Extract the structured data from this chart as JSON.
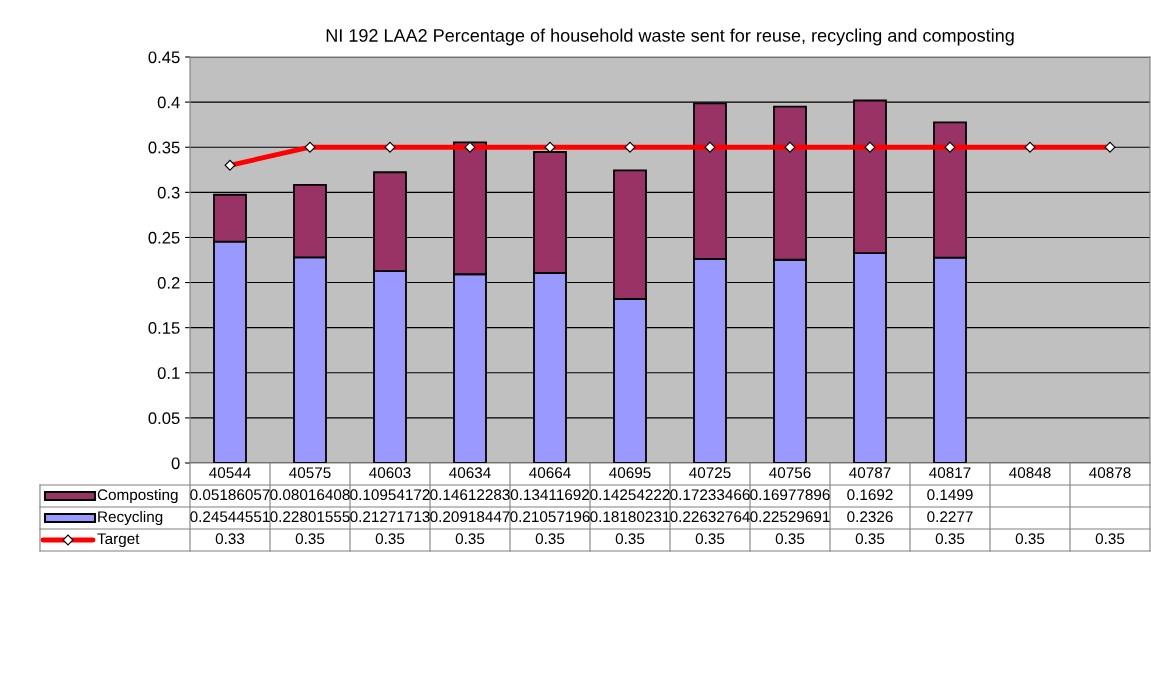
{
  "chart_data": {
    "type": "bar",
    "title": "NI 192 LAA2 Percentage of household waste sent for reuse, recycling and composting",
    "categories": [
      "40544",
      "40575",
      "40603",
      "40634",
      "40664",
      "40695",
      "40725",
      "40756",
      "40787",
      "40817",
      "40848",
      "40878"
    ],
    "stacked": true,
    "series": [
      {
        "name": "Recycling",
        "color": "#9999ff",
        "values": [
          0.24544551,
          0.22801555,
          0.21271713,
          0.20918447,
          0.21057196,
          0.18180231,
          0.22632764,
          0.22529691,
          0.2326,
          0.2277,
          null,
          null
        ]
      },
      {
        "name": "Composting",
        "color": "#993366",
        "values": [
          0.05186057,
          0.08016408,
          0.10954172,
          0.14612283,
          0.13411692,
          0.14254222,
          0.17233466,
          0.16977896,
          0.1692,
          0.1499,
          null,
          null
        ]
      },
      {
        "name": "Target",
        "type": "line",
        "color": "#ff0000",
        "marker": "diamond",
        "line_style": "solid",
        "values": [
          0.33,
          0.35,
          0.35,
          0.35,
          0.35,
          0.35,
          0.35,
          0.35,
          0.35,
          0.35,
          0.35,
          0.35
        ]
      }
    ],
    "ylim": [
      0,
      0.45
    ],
    "yticks": [
      0,
      0.05,
      0.1,
      0.15,
      0.2,
      0.25,
      0.3,
      0.35,
      0.4,
      0.45
    ],
    "grid": "y",
    "legend": "bottom",
    "data_labels": true
  }
}
